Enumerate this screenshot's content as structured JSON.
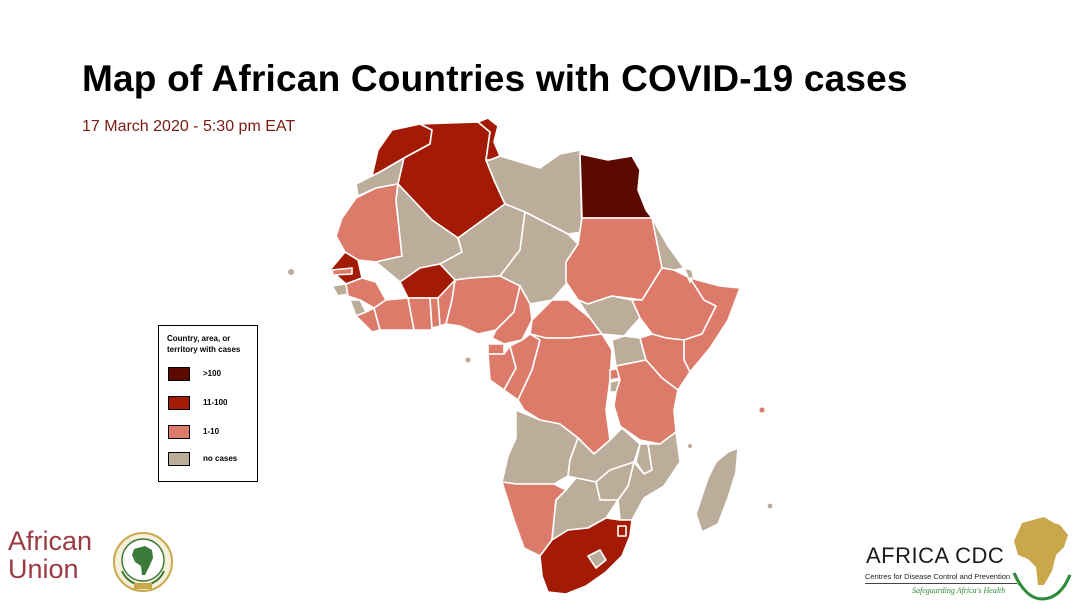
{
  "header": {
    "title": "Map of African Countries with COVID-19 cases",
    "date": "17 March 2020 - 5:30 pm EAT"
  },
  "legend": {
    "title": "Country, area, or territory with cases",
    "items": [
      {
        "label": ">100",
        "color": "#5c0a00"
      },
      {
        "label": "11-100",
        "color": "#a31a05"
      },
      {
        "label": "1-10",
        "color": "#dd7b6a"
      },
      {
        "label": "no cases",
        "color": "#bcac9a"
      }
    ]
  },
  "map": {
    "colors": {
      "over_100": "#5c0a00",
      "c11_100": "#a31a05",
      "c1_10": "#dd7b6a",
      "none": "#bcac9a",
      "border": "#ffffff"
    }
  },
  "logos": {
    "african_union_line1": "African",
    "african_union_line2": "Union",
    "africa_cdc_name": "AFRICA CDC",
    "africa_cdc_subtitle": "Centres for Disease Control and Prevention",
    "africa_cdc_tagline": "Safeguarding Africa's Health"
  }
}
